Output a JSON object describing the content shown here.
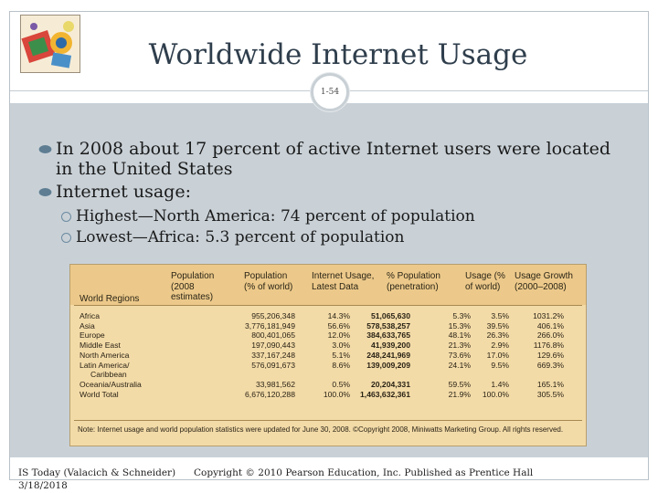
{
  "slide": {
    "title": "Worldwide Internet Usage",
    "number": "1-54",
    "logo_icon": "textbook-logo-icon",
    "accent_color": "#5e7d92",
    "content_bg": "#c9d1d7"
  },
  "bullets": [
    {
      "text": "In 2008 about 17 percent of active Internet users were located in the United States"
    },
    {
      "text": "Internet usage:",
      "sub": [
        "Highest—North America: 74 percent of population",
        "Lowest—Africa: 5.3 percent of population"
      ]
    }
  ],
  "table": {
    "headers": {
      "world_regions": "World Regions",
      "population": "Population (2008 estimates)",
      "pop_pct": "Population (% of world)",
      "internet_usage": "Internet Usage, Latest Data",
      "penetration": "% Population (penetration)",
      "usage_pct": "Usage (% of world)",
      "usage_growth": "Usage Growth (2000–2008)"
    },
    "rows": [
      {
        "region": "Africa",
        "population": "955,206,348",
        "pop_pct": "14.3%",
        "usage": "51,065,630",
        "penetration": "5.3%",
        "usage_pct": "3.5%",
        "growth": "1031.2%"
      },
      {
        "region": "Asia",
        "population": "3,776,181,949",
        "pop_pct": "56.6%",
        "usage": "578,538,257",
        "penetration": "15.3%",
        "usage_pct": "39.5%",
        "growth": "406.1%"
      },
      {
        "region": "Europe",
        "population": "800,401,065",
        "pop_pct": "12.0%",
        "usage": "384,633,765",
        "penetration": "48.1%",
        "usage_pct": "26.3%",
        "growth": "266.0%"
      },
      {
        "region": "Middle East",
        "population": "197,090,443",
        "pop_pct": "3.0%",
        "usage": "41,939,200",
        "penetration": "21.3%",
        "usage_pct": "2.9%",
        "growth": "1176.8%"
      },
      {
        "region": "North America",
        "population": "337,167,248",
        "pop_pct": "5.1%",
        "usage": "248,241,969",
        "penetration": "73.6%",
        "usage_pct": "17.0%",
        "growth": "129.6%"
      },
      {
        "region": "Latin America/",
        "population": "576,091,673",
        "pop_pct": "8.6%",
        "usage": "139,009,209",
        "penetration": "24.1%",
        "usage_pct": "9.5%",
        "growth": "669.3%"
      },
      {
        "region": "Caribbean"
      },
      {
        "region": "Oceania/Australia",
        "population": "33,981,562",
        "pop_pct": "0.5%",
        "usage": "20,204,331",
        "penetration": "59.5%",
        "usage_pct": "1.4%",
        "growth": "165.1%"
      },
      {
        "region": "World Total",
        "population": "6,676,120,288",
        "pop_pct": "100.0%",
        "usage": "1,463,632,361",
        "penetration": "21.9%",
        "usage_pct": "100.0%",
        "growth": "305.5%"
      }
    ],
    "note": "Note: Internet usage and world population statistics were updated for June 30, 2008. ©Copyright 2008, Miniwatts Marketing Group. All rights reserved."
  },
  "footer": {
    "left_line1": "IS Today (Valacich & Schneider)",
    "left_line2": "3/18/2018",
    "copyright": "Copyright © 2010 Pearson Education, Inc. Published as Prentice Hall"
  }
}
